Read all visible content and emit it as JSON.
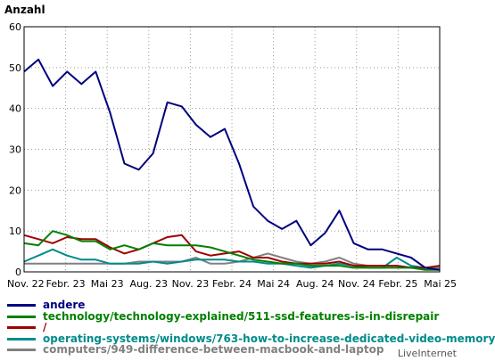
{
  "chart_data": {
    "type": "line",
    "title": "",
    "ylabel": "Anzahl",
    "xlabel": "",
    "ylim": [
      0,
      60
    ],
    "yticks": [
      0,
      10,
      20,
      30,
      40,
      50,
      60
    ],
    "xtick_labels": [
      "Nov. 22",
      "Febr. 23",
      "Mai 23",
      "Aug. 23",
      "Nov. 23",
      "Febr. 24",
      "Mai 24",
      "Aug. 24",
      "Nov. 24",
      "Febr. 25",
      "Mai 25"
    ],
    "grid": true,
    "legend_position": "bottom",
    "series": [
      {
        "name": "andere",
        "color": "#000080",
        "values": [
          49,
          52,
          45.5,
          49,
          46,
          49,
          39,
          26.5,
          25,
          29,
          41.5,
          40.5,
          36,
          33,
          35,
          26.5,
          16,
          12.5,
          10.5,
          12.5,
          6.5,
          9.5,
          15,
          7,
          5.5,
          5.5,
          4.5,
          3.5,
          1,
          0.5
        ]
      },
      {
        "name": "technology/technology-explained/511-ssd-features-is-in-disrepair",
        "color": "#008000",
        "values": [
          7,
          6.5,
          10,
          9,
          7.5,
          7.5,
          5.5,
          6.5,
          5.5,
          7,
          6.5,
          6.5,
          6.5,
          6,
          5,
          4,
          3,
          2.5,
          2,
          2,
          1.5,
          1.5,
          1.5,
          1,
          1,
          1,
          1,
          1,
          0.5,
          0.5
        ]
      },
      {
        "name": "/",
        "color": "#a00000",
        "values": [
          9,
          8,
          7,
          8.5,
          8,
          8,
          6,
          4.5,
          5.5,
          7,
          8.5,
          9,
          5,
          4,
          4.5,
          5,
          3.5,
          3.5,
          2.5,
          2,
          2,
          2,
          2.5,
          1.5,
          1.5,
          1.5,
          1.5,
          1,
          1,
          1.5
        ]
      },
      {
        "name": "operating-systems/windows/763-how-to-increase-dedicated-video-memory",
        "color": "#008b8b",
        "values": [
          2.5,
          4,
          5.5,
          4,
          3,
          3,
          2,
          2,
          2,
          2.5,
          2,
          2.5,
          3,
          3,
          3,
          2.5,
          2.5,
          2,
          2,
          1.5,
          1,
          1.5,
          2,
          1.5,
          1,
          1,
          3.5,
          1.5,
          1,
          0.5
        ]
      },
      {
        "name": "computers/949-difference-between-macbook-and-laptop",
        "color": "#808080",
        "values": [
          2,
          2,
          2,
          2,
          2,
          2,
          2,
          2,
          2.5,
          2.5,
          2.5,
          2.5,
          3.5,
          2,
          2,
          2.5,
          3.5,
          4.5,
          3.5,
          2.5,
          2,
          2.5,
          3.5,
          2,
          1.5,
          1.5,
          1.5,
          1,
          1,
          1
        ]
      }
    ]
  },
  "brand": "LiveInternet"
}
